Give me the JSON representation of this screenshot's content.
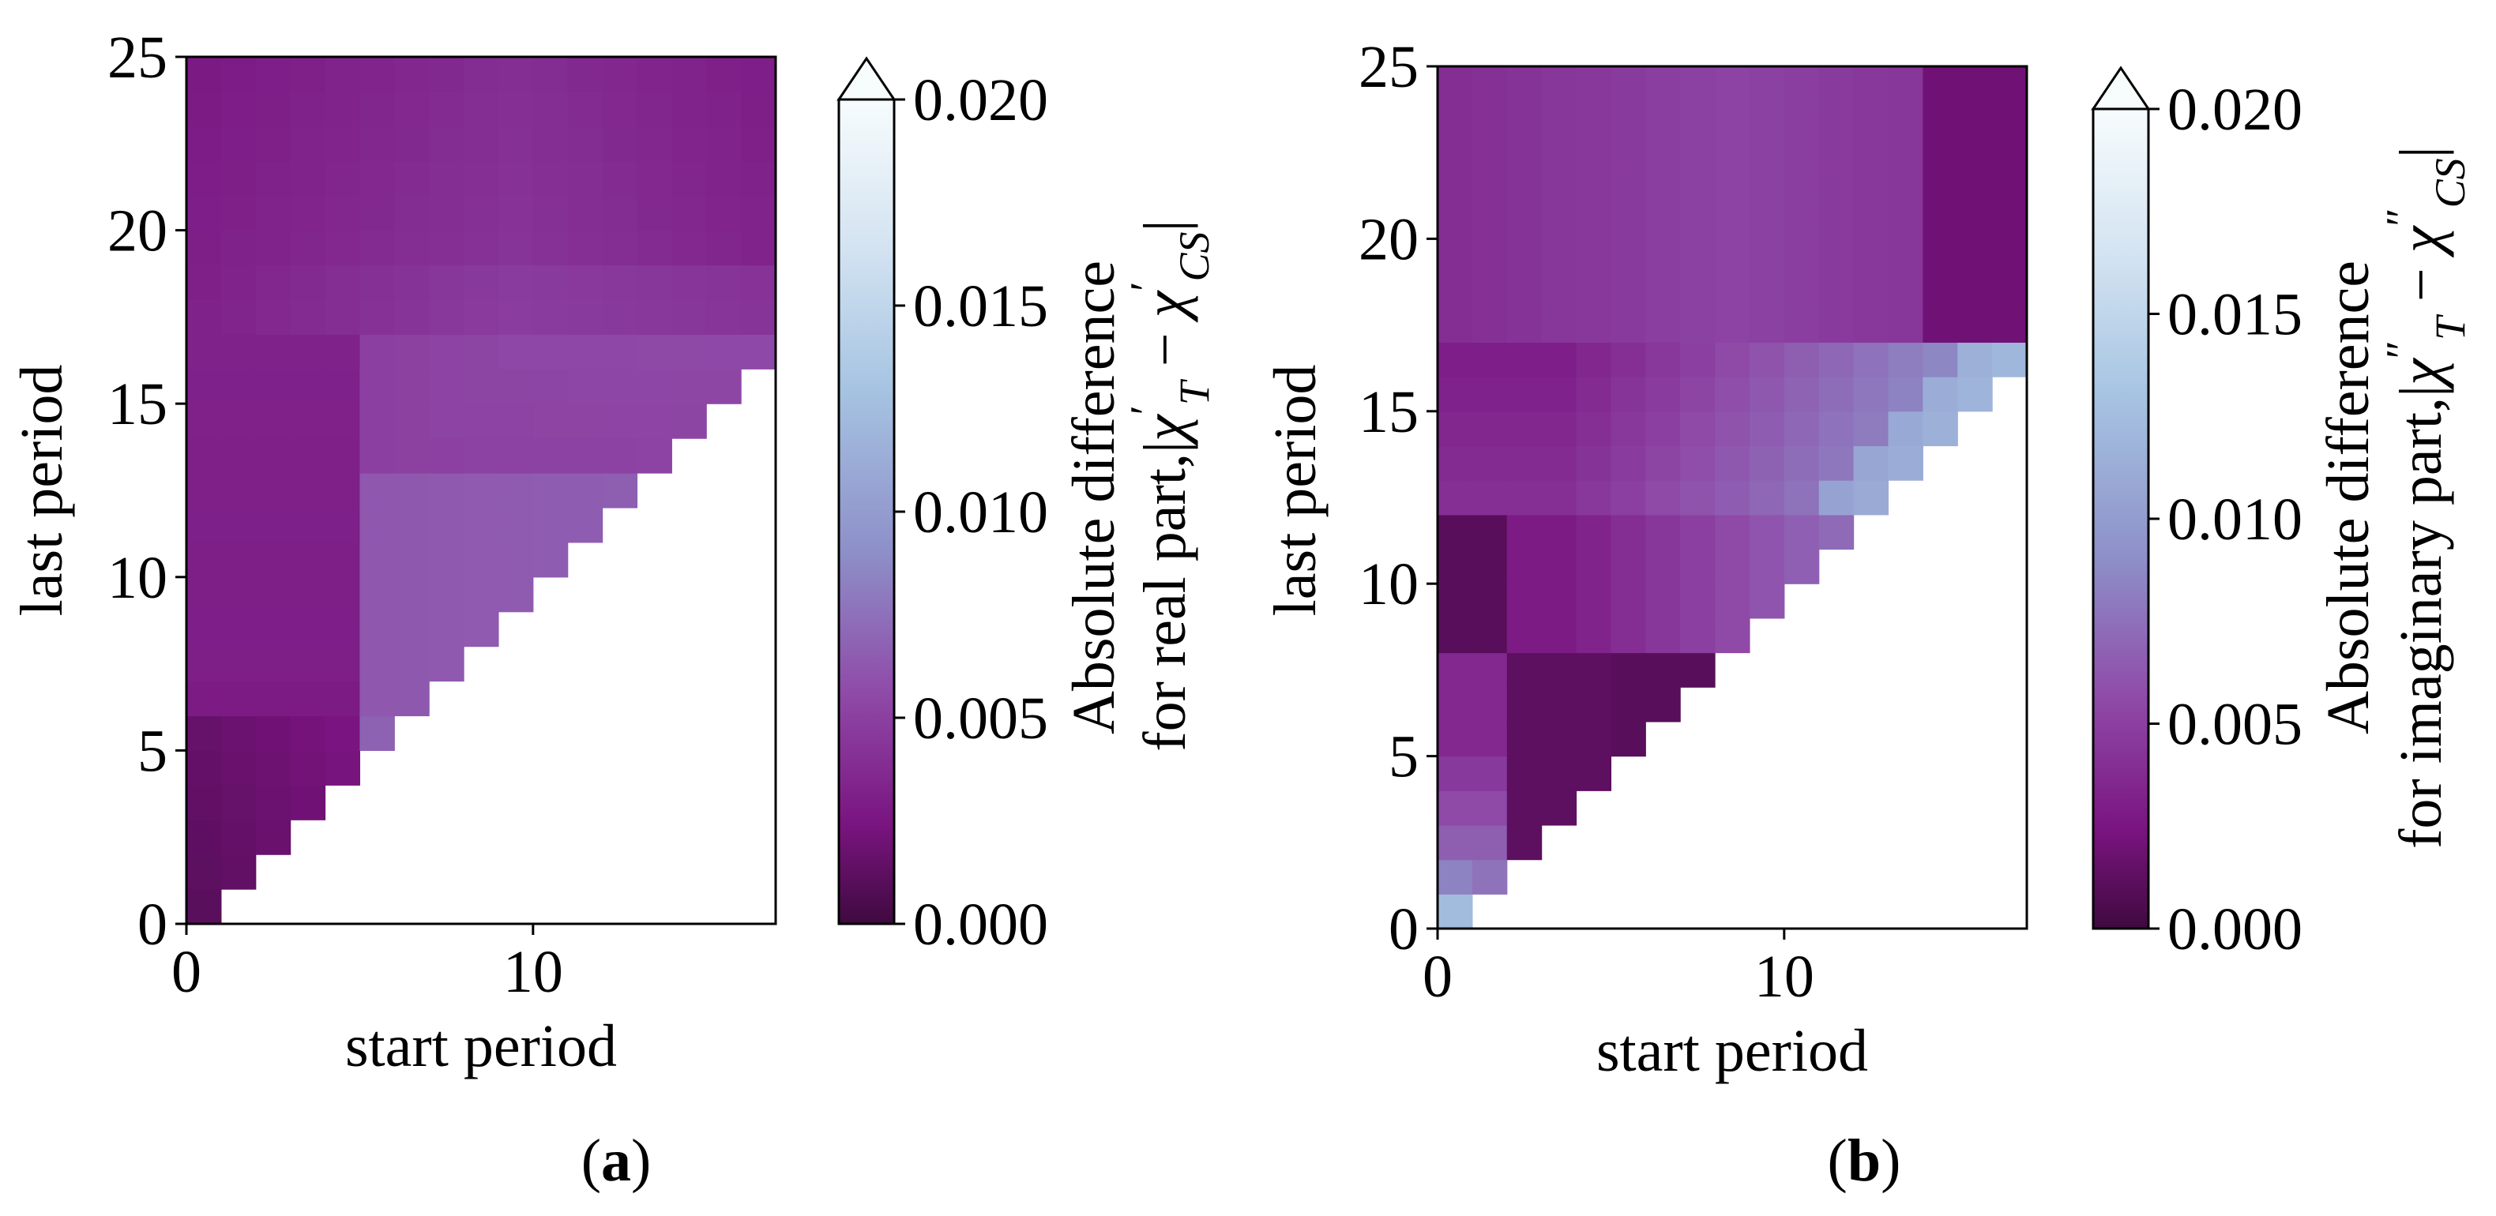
{
  "figure": {
    "panel_labels": [
      "a",
      "b"
    ]
  },
  "colorbar": {
    "colors": [
      "#3f0a3f",
      "#7a1480",
      "#8f4aa8",
      "#8d8fc8",
      "#a6c4e2",
      "#d3e3f1",
      "#f7fcfd"
    ],
    "stops": [
      0.0,
      0.12,
      0.28,
      0.45,
      0.65,
      0.82,
      1.0
    ],
    "extend": "max"
  },
  "chart_data": [
    {
      "type": "heatmap",
      "panel": "a",
      "xlabel": "start period",
      "ylabel": "last period",
      "colorbar_label_line1": "Absolute difference",
      "colorbar_label_line2": "for real part,|χ′T − χ′CS|",
      "colorbar_label_line2_text": "for real part,",
      "colorbar_label_expr_chi1": "χ",
      "colorbar_label_expr_prime1": "′",
      "colorbar_label_expr_sub1": "T",
      "colorbar_label_expr_minus": "−",
      "colorbar_label_expr_chi2": "χ",
      "colorbar_label_expr_prime2": "′",
      "colorbar_label_expr_sub2": "CS",
      "xlim": [
        0,
        17
      ],
      "ylim": [
        0,
        25
      ],
      "xticks": [
        0,
        10
      ],
      "xtick_labels": [
        "0",
        "10"
      ],
      "yticks": [
        0,
        5,
        10,
        15,
        20,
        25
      ],
      "ytick_labels": [
        "0",
        "5",
        "10",
        "15",
        "20",
        "25"
      ],
      "clim": [
        0.0,
        0.02
      ],
      "cticks": [
        0.0,
        0.005,
        0.01,
        0.015,
        0.02
      ],
      "ctick_labels": [
        "0.000",
        "0.005",
        "0.010",
        "0.015",
        "0.020"
      ],
      "cell_rule": "cell (start, last) defined for last >= start + 1",
      "grid": false
    },
    {
      "type": "heatmap",
      "panel": "b",
      "xlabel": "start period",
      "ylabel": "last period",
      "colorbar_label_line1": "Absolute difference",
      "colorbar_label_line2": "for imaginary part,|χ″T − χ″CS|",
      "colorbar_label_line2_text": "for imaginary part,",
      "colorbar_label_expr_chi1": "χ",
      "colorbar_label_expr_prime1": "″",
      "colorbar_label_expr_sub1": "T",
      "colorbar_label_expr_minus": "−",
      "colorbar_label_expr_chi2": "χ",
      "colorbar_label_expr_prime2": "″",
      "colorbar_label_expr_sub2": "CS",
      "xlim": [
        0,
        17
      ],
      "ylim": [
        0,
        25
      ],
      "xticks": [
        0,
        10
      ],
      "xtick_labels": [
        "0",
        "10"
      ],
      "yticks": [
        0,
        5,
        10,
        15,
        20,
        25
      ],
      "ytick_labels": [
        "0",
        "5",
        "10",
        "15",
        "20",
        "25"
      ],
      "clim": [
        0.0,
        0.02
      ],
      "cticks": [
        0.0,
        0.005,
        0.01,
        0.015,
        0.02
      ],
      "ctick_labels": [
        "0.000",
        "0.005",
        "0.010",
        "0.015",
        "0.020"
      ],
      "cell_rule": "cell (start, last) defined for last >= start + 1",
      "grid": false
    }
  ]
}
